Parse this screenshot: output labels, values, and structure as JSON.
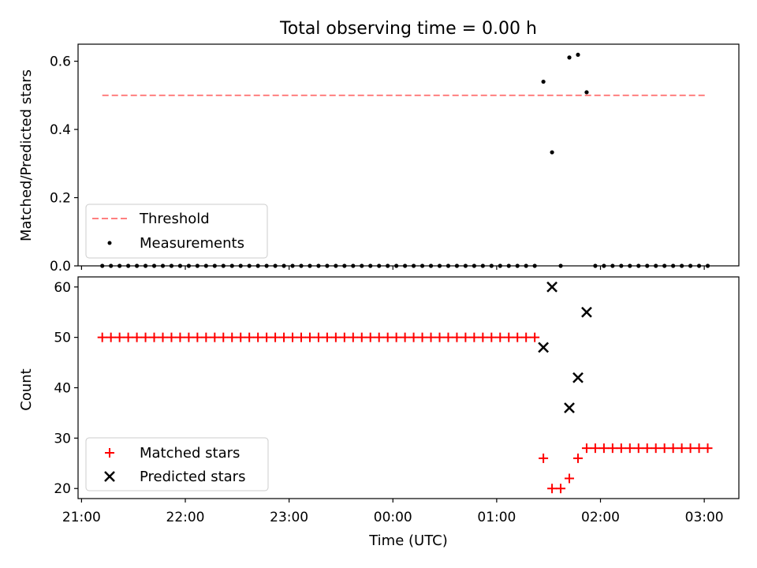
{
  "title": "Total observing time = 0.00 h",
  "colors": {
    "threshold": "#ff7f7f",
    "measurements": "#000000",
    "matched": "#ff0000",
    "predicted": "#000000"
  },
  "chart_data": [
    {
      "type": "scatter",
      "ylabel": "Matched/Predicted stars",
      "ylim": [
        0,
        0.65
      ],
      "yticks": [
        {
          "v": 0.0,
          "label": "0.0"
        },
        {
          "v": 0.2,
          "label": "0.2"
        },
        {
          "v": 0.4,
          "label": "0.4"
        },
        {
          "v": 0.6,
          "label": "0.6"
        }
      ],
      "threshold": {
        "name": "Threshold",
        "y": 0.5,
        "x_range": [
          "21:12",
          "03:02"
        ]
      },
      "series": [
        {
          "name": "Measurements",
          "x": [
            "21:12",
            "21:17",
            "21:22",
            "21:27",
            "21:32",
            "21:37",
            "21:42",
            "21:47",
            "21:52",
            "21:57",
            "22:02",
            "22:07",
            "22:12",
            "22:17",
            "22:22",
            "22:27",
            "22:32",
            "22:37",
            "22:42",
            "22:47",
            "22:52",
            "22:57",
            "23:02",
            "23:07",
            "23:12",
            "23:17",
            "23:22",
            "23:27",
            "23:32",
            "23:37",
            "23:42",
            "23:47",
            "23:52",
            "23:57",
            "00:02",
            "00:07",
            "00:12",
            "00:17",
            "00:22",
            "00:27",
            "00:32",
            "00:37",
            "00:42",
            "00:47",
            "00:52",
            "00:57",
            "01:02",
            "01:07",
            "01:12",
            "01:17",
            "01:22",
            "01:27",
            "01:32",
            "01:37",
            "01:42",
            "01:47",
            "01:52",
            "01:57",
            "02:02",
            "02:07",
            "02:12",
            "02:17",
            "02:22",
            "02:27",
            "02:32",
            "02:37",
            "02:42",
            "02:47",
            "02:52",
            "02:57",
            "03:02"
          ],
          "y": [
            0,
            0,
            0,
            0,
            0,
            0,
            0,
            0,
            0,
            0,
            0,
            0,
            0,
            0,
            0,
            0,
            0,
            0,
            0,
            0,
            0,
            0,
            0,
            0,
            0,
            0,
            0,
            0,
            0,
            0,
            0,
            0,
            0,
            0,
            0,
            0,
            0,
            0,
            0,
            0,
            0,
            0,
            0,
            0,
            0,
            0,
            0,
            0,
            0,
            0,
            0,
            0.54,
            0.333,
            0,
            0.611,
            0.619,
            0.509,
            0,
            0,
            0,
            0,
            0,
            0,
            0,
            0,
            0,
            0,
            0,
            0,
            0,
            0
          ]
        }
      ],
      "legend": {
        "position": "lower-left",
        "entries": [
          "Threshold",
          "Measurements"
        ]
      }
    },
    {
      "type": "scatter",
      "xlabel": "Time (UTC)",
      "ylabel": "Count",
      "ylim": [
        18,
        62
      ],
      "xlim": [
        "20:58",
        "03:20"
      ],
      "xticks": [
        "21:00",
        "22:00",
        "23:00",
        "00:00",
        "01:00",
        "02:00",
        "03:00"
      ],
      "yticks": [
        20,
        30,
        40,
        50,
        60
      ],
      "series": [
        {
          "name": "Matched stars",
          "x": [
            "21:12",
            "21:17",
            "21:22",
            "21:27",
            "21:32",
            "21:37",
            "21:42",
            "21:47",
            "21:52",
            "21:57",
            "22:02",
            "22:07",
            "22:12",
            "22:17",
            "22:22",
            "22:27",
            "22:32",
            "22:37",
            "22:42",
            "22:47",
            "22:52",
            "22:57",
            "23:02",
            "23:07",
            "23:12",
            "23:17",
            "23:22",
            "23:27",
            "23:32",
            "23:37",
            "23:42",
            "23:47",
            "23:52",
            "23:57",
            "00:02",
            "00:07",
            "00:12",
            "00:17",
            "00:22",
            "00:27",
            "00:32",
            "00:37",
            "00:42",
            "00:47",
            "00:52",
            "00:57",
            "01:02",
            "01:07",
            "01:12",
            "01:17",
            "01:22",
            "01:27",
            "01:32",
            "01:37",
            "01:42",
            "01:47",
            "01:52",
            "01:57",
            "02:02",
            "02:07",
            "02:12",
            "02:17",
            "02:22",
            "02:27",
            "02:32",
            "02:37",
            "02:42",
            "02:47",
            "02:52",
            "02:57",
            "03:02"
          ],
          "y": [
            50,
            50,
            50,
            50,
            50,
            50,
            50,
            50,
            50,
            50,
            50,
            50,
            50,
            50,
            50,
            50,
            50,
            50,
            50,
            50,
            50,
            50,
            50,
            50,
            50,
            50,
            50,
            50,
            50,
            50,
            50,
            50,
            50,
            50,
            50,
            50,
            50,
            50,
            50,
            50,
            50,
            50,
            50,
            50,
            50,
            50,
            50,
            50,
            50,
            50,
            50,
            26,
            20,
            20,
            22,
            26,
            28,
            28,
            28,
            28,
            28,
            28,
            28,
            28,
            28,
            28,
            28,
            28,
            28,
            28,
            28
          ]
        },
        {
          "name": "Predicted stars",
          "x": [
            "01:27",
            "01:32",
            "01:42",
            "01:47",
            "01:52"
          ],
          "y": [
            48,
            60,
            36,
            42,
            55
          ]
        }
      ],
      "legend": {
        "position": "lower-left",
        "entries": [
          "Matched stars",
          "Predicted stars"
        ]
      }
    }
  ]
}
